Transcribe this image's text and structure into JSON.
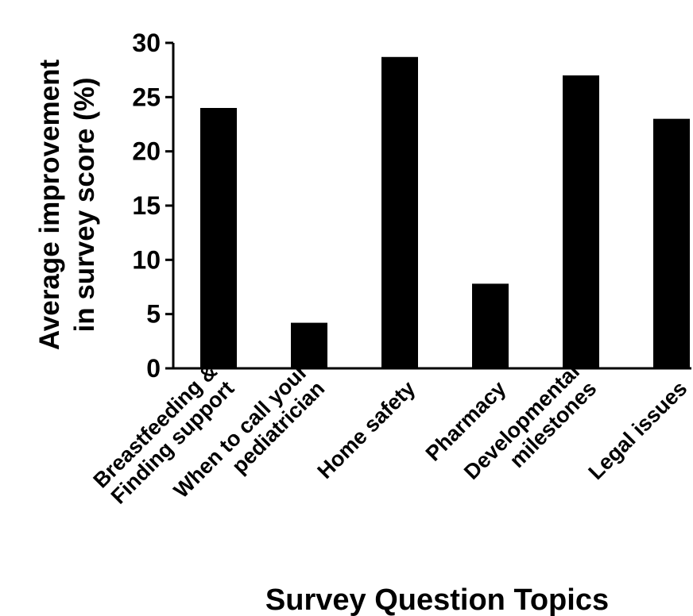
{
  "chart_data": {
    "type": "bar",
    "categories": [
      [
        "Breastfeeding &",
        "Finding support"
      ],
      [
        "When to call your",
        "pediatrician"
      ],
      [
        "Home safety"
      ],
      [
        "Pharmacy"
      ],
      [
        "Developmental",
        "milestones"
      ],
      [
        "Legal issues"
      ]
    ],
    "values": [
      24,
      4.2,
      28.7,
      7.8,
      27,
      23
    ],
    "title": "",
    "xlabel": "Survey Question Topics",
    "ylabel": [
      "Average improvement",
      "in survey score (%)"
    ],
    "ylim": [
      0,
      30
    ],
    "yticks": [
      0,
      5,
      10,
      15,
      20,
      25,
      30
    ],
    "grid": false,
    "bar_color": "#000000"
  }
}
